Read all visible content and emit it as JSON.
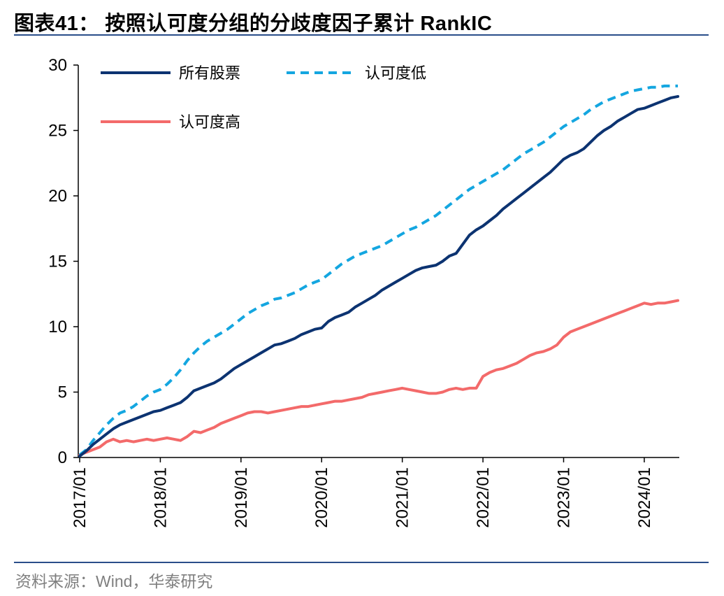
{
  "title": "图表41： 按照认可度分组的分歧度因子累计 RankIC",
  "source": "资料来源：Wind，华泰研究",
  "chart_data": {
    "type": "line",
    "x": [
      "2017/01",
      "2017/02",
      "2017/03",
      "2017/04",
      "2017/05",
      "2017/06",
      "2017/07",
      "2017/08",
      "2017/09",
      "2017/10",
      "2017/11",
      "2017/12",
      "2018/01",
      "2018/02",
      "2018/03",
      "2018/04",
      "2018/05",
      "2018/06",
      "2018/07",
      "2018/08",
      "2018/09",
      "2018/10",
      "2018/11",
      "2018/12",
      "2019/01",
      "2019/02",
      "2019/03",
      "2019/04",
      "2019/05",
      "2019/06",
      "2019/07",
      "2019/08",
      "2019/09",
      "2019/10",
      "2019/11",
      "2019/12",
      "2020/01",
      "2020/02",
      "2020/03",
      "2020/04",
      "2020/05",
      "2020/06",
      "2020/07",
      "2020/08",
      "2020/09",
      "2020/10",
      "2020/11",
      "2020/12",
      "2021/01",
      "2021/02",
      "2021/03",
      "2021/04",
      "2021/05",
      "2021/06",
      "2021/07",
      "2021/08",
      "2021/09",
      "2021/10",
      "2021/11",
      "2021/12",
      "2022/01",
      "2022/02",
      "2022/03",
      "2022/04",
      "2022/05",
      "2022/06",
      "2022/07",
      "2022/08",
      "2022/09",
      "2022/10",
      "2022/11",
      "2022/12",
      "2023/01",
      "2023/02",
      "2023/03",
      "2023/04",
      "2023/05",
      "2023/06",
      "2023/07",
      "2023/08",
      "2023/09",
      "2023/10",
      "2023/11",
      "2023/12",
      "2024/01",
      "2024/02",
      "2024/03",
      "2024/04",
      "2024/05",
      "2024/06"
    ],
    "x_ticks": [
      "2017/01",
      "2018/01",
      "2019/01",
      "2020/01",
      "2021/01",
      "2022/01",
      "2023/01",
      "2024/01"
    ],
    "ylim": [
      0,
      30
    ],
    "y_ticks": [
      0,
      5,
      10,
      15,
      20,
      25,
      30
    ],
    "legend_position": "top-left",
    "series": [
      {
        "name": "所有股票",
        "color": "#0c3371",
        "style": "solid",
        "values": [
          0.1,
          0.5,
          1.0,
          1.4,
          1.8,
          2.2,
          2.5,
          2.7,
          2.9,
          3.1,
          3.3,
          3.5,
          3.6,
          3.8,
          4.0,
          4.2,
          4.6,
          5.1,
          5.3,
          5.5,
          5.7,
          6.0,
          6.4,
          6.8,
          7.1,
          7.4,
          7.7,
          8.0,
          8.3,
          8.6,
          8.7,
          8.9,
          9.1,
          9.4,
          9.6,
          9.8,
          9.9,
          10.4,
          10.7,
          10.9,
          11.1,
          11.5,
          11.8,
          12.1,
          12.4,
          12.8,
          13.1,
          13.4,
          13.7,
          14.0,
          14.3,
          14.5,
          14.6,
          14.7,
          15.0,
          15.4,
          15.6,
          16.3,
          17.0,
          17.4,
          17.7,
          18.1,
          18.5,
          19.0,
          19.4,
          19.8,
          20.2,
          20.6,
          21.0,
          21.4,
          21.8,
          22.3,
          22.8,
          23.1,
          23.3,
          23.6,
          24.1,
          24.6,
          25.0,
          25.3,
          25.7,
          26.0,
          26.3,
          26.6,
          26.7,
          26.9,
          27.1,
          27.3,
          27.5,
          27.6
        ]
      },
      {
        "name": "认可度低",
        "color": "#14a6e0",
        "style": "dashed",
        "values": [
          0.2,
          0.6,
          1.3,
          1.9,
          2.5,
          3.0,
          3.4,
          3.6,
          3.9,
          4.3,
          4.7,
          5.0,
          5.2,
          5.6,
          6.1,
          6.7,
          7.4,
          8.0,
          8.5,
          8.9,
          9.2,
          9.5,
          9.8,
          10.2,
          10.6,
          11.0,
          11.3,
          11.6,
          11.8,
          12.1,
          12.2,
          12.4,
          12.6,
          12.9,
          13.2,
          13.4,
          13.6,
          14.0,
          14.4,
          14.8,
          15.1,
          15.4,
          15.6,
          15.8,
          16.0,
          16.2,
          16.5,
          16.8,
          17.1,
          17.4,
          17.6,
          17.9,
          18.2,
          18.5,
          18.9,
          19.3,
          19.7,
          20.1,
          20.5,
          20.8,
          21.1,
          21.4,
          21.7,
          22.0,
          22.4,
          22.8,
          23.2,
          23.5,
          23.8,
          24.1,
          24.5,
          24.9,
          25.3,
          25.6,
          25.9,
          26.2,
          26.6,
          26.9,
          27.2,
          27.4,
          27.6,
          27.8,
          28.0,
          28.1,
          28.2,
          28.3,
          28.3,
          28.4,
          28.4,
          28.4
        ]
      },
      {
        "name": "认可度高",
        "color": "#f36a6a",
        "style": "solid",
        "values": [
          0.2,
          0.4,
          0.6,
          0.8,
          1.2,
          1.4,
          1.2,
          1.3,
          1.2,
          1.3,
          1.4,
          1.3,
          1.4,
          1.5,
          1.4,
          1.3,
          1.6,
          2.0,
          1.9,
          2.1,
          2.3,
          2.6,
          2.8,
          3.0,
          3.2,
          3.4,
          3.5,
          3.5,
          3.4,
          3.5,
          3.6,
          3.7,
          3.8,
          3.9,
          3.9,
          4.0,
          4.1,
          4.2,
          4.3,
          4.3,
          4.4,
          4.5,
          4.6,
          4.8,
          4.9,
          5.0,
          5.1,
          5.2,
          5.3,
          5.2,
          5.1,
          5.0,
          4.9,
          4.9,
          5.0,
          5.2,
          5.3,
          5.2,
          5.3,
          5.3,
          6.2,
          6.5,
          6.7,
          6.8,
          7.0,
          7.2,
          7.5,
          7.8,
          8.0,
          8.1,
          8.3,
          8.6,
          9.2,
          9.6,
          9.8,
          10.0,
          10.2,
          10.4,
          10.6,
          10.8,
          11.0,
          11.2,
          11.4,
          11.6,
          11.8,
          11.7,
          11.8,
          11.8,
          11.9,
          12.0
        ]
      }
    ]
  }
}
